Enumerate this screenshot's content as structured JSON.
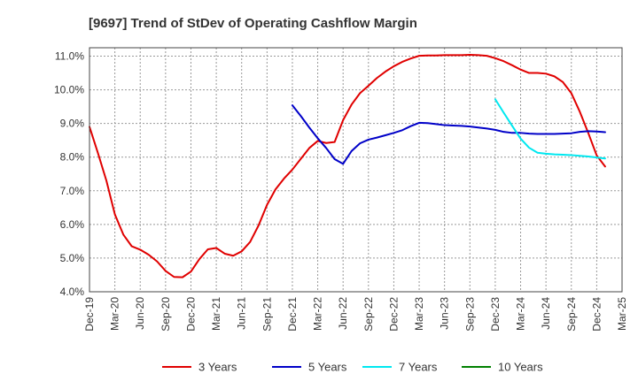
{
  "chart_data": {
    "type": "line",
    "title": "[9697]  Trend of StDev of Operating Cashflow Margin",
    "xlabel": "",
    "ylabel": "",
    "ylim": [
      4.0,
      11.25
    ],
    "grid": true,
    "legend_position": "bottom",
    "y_ticks": [
      "4.0%",
      "5.0%",
      "6.0%",
      "7.0%",
      "8.0%",
      "9.0%",
      "10.0%",
      "11.0%"
    ],
    "x_ticks": [
      "Dec-19",
      "Mar-20",
      "Jun-20",
      "Sep-20",
      "Dec-20",
      "Mar-21",
      "Jun-21",
      "Sep-21",
      "Dec-21",
      "Mar-22",
      "Jun-22",
      "Sep-22",
      "Dec-22",
      "Mar-23",
      "Jun-23",
      "Sep-23",
      "Dec-23",
      "Mar-24",
      "Jun-24",
      "Sep-24",
      "Dec-24",
      "Mar-25"
    ],
    "series": [
      {
        "name": "3 Years",
        "color": "#e00000",
        "start_index": 0,
        "values": [
          8.9,
          8.12,
          7.3,
          6.3,
          5.7,
          5.35,
          5.25,
          5.1,
          4.9,
          4.62,
          4.44,
          4.43,
          4.6,
          4.97,
          5.26,
          5.3,
          5.13,
          5.07,
          5.2,
          5.48,
          5.97,
          6.58,
          7.04,
          7.36,
          7.63,
          7.95,
          8.27,
          8.48,
          8.42,
          8.45,
          9.1,
          9.56,
          9.9,
          10.12,
          10.35,
          10.54,
          10.7,
          10.83,
          10.93,
          11.01,
          11.02,
          11.02,
          11.03,
          11.03,
          11.03,
          11.04,
          11.03,
          11.01,
          10.94,
          10.85,
          10.73,
          10.6,
          10.5,
          10.5,
          10.48,
          10.4,
          10.23,
          9.9,
          9.35,
          8.72,
          8.05,
          7.72
        ]
      },
      {
        "name": "5 Years",
        "color": "#0000c8",
        "start_index": 24,
        "values": [
          9.54,
          9.22,
          8.88,
          8.56,
          8.27,
          7.94,
          7.8,
          8.18,
          8.41,
          8.52,
          8.58,
          8.65,
          8.72,
          8.8,
          8.92,
          9.02,
          9.01,
          8.98,
          8.95,
          8.94,
          8.93,
          8.91,
          8.88,
          8.85,
          8.81,
          8.75,
          8.72,
          8.72,
          8.7,
          8.69,
          8.69,
          8.69,
          8.7,
          8.71,
          8.75,
          8.77,
          8.76,
          8.74
        ]
      },
      {
        "name": "7 Years",
        "color": "#00e8f0",
        "start_index": 48,
        "values": [
          9.72,
          9.32,
          8.93,
          8.55,
          8.28,
          8.13,
          8.1,
          8.08,
          8.07,
          8.06,
          8.04,
          8.02,
          7.99,
          7.96
        ]
      },
      {
        "name": "10 Years",
        "color": "#008000",
        "start_index": 48,
        "values": []
      }
    ]
  }
}
